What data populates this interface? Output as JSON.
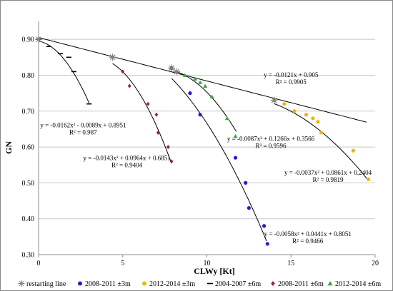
{
  "chart_data": {
    "type": "scatter",
    "xlabel": "CLWy [Kt]",
    "ylabel": "GN",
    "xlim": [
      0,
      20
    ],
    "ylim": [
      0.3,
      0.95
    ],
    "x_ticks": [
      0,
      5,
      10,
      15,
      20
    ],
    "y_ticks": [
      0.3,
      0.4,
      0.5,
      0.6,
      0.7,
      0.8,
      0.9
    ],
    "y_tick_labels": [
      "0.30",
      "0.40",
      "0.50",
      "0.60",
      "0.70",
      "0.80",
      "0.90"
    ],
    "grid": "horizontal",
    "legend_position": "bottom",
    "series": [
      {
        "name": "restarting line",
        "marker": "asterisk",
        "color": "#7f7f7f",
        "x": [
          0.0,
          4.4,
          7.9,
          8.2,
          14.0
        ],
        "y": [
          0.9,
          0.85,
          0.82,
          0.81,
          0.73
        ]
      },
      {
        "name": "2008-2011 ±3m",
        "marker": "circle",
        "color": "#1f1fd0",
        "x": [
          7.9,
          9.0,
          9.6,
          11.7,
          12.3,
          12.5,
          13.4,
          13.6
        ],
        "y": [
          0.82,
          0.75,
          0.69,
          0.57,
          0.5,
          0.43,
          0.38,
          0.33
        ]
      },
      {
        "name": "2012-2014 ±3m",
        "marker": "circle",
        "color": "#f5b400",
        "x": [
          14.0,
          14.6,
          15.2,
          15.9,
          16.3,
          16.6,
          16.8,
          18.7,
          19.6
        ],
        "y": [
          0.73,
          0.72,
          0.7,
          0.69,
          0.68,
          0.67,
          0.64,
          0.59,
          0.51
        ]
      },
      {
        "name": "2004-2007 ±6m",
        "marker": "dash",
        "color": "#000000",
        "x": [
          0.0,
          0.6,
          1.3,
          1.8,
          2.1,
          3.0
        ],
        "y": [
          0.9,
          0.88,
          0.86,
          0.85,
          0.81,
          0.72
        ]
      },
      {
        "name": "2008-2011 ±6m",
        "marker": "diamond",
        "color": "#a0203a",
        "x": [
          4.4,
          5.0,
          5.4,
          6.5,
          7.0,
          7.1,
          7.7,
          7.9
        ],
        "y": [
          0.85,
          0.81,
          0.77,
          0.72,
          0.69,
          0.64,
          0.6,
          0.56
        ]
      },
      {
        "name": "2012-2014 ±6m",
        "marker": "triangle",
        "color": "#3aa63a",
        "x": [
          8.2,
          8.7,
          9.3,
          9.6,
          9.9,
          10.3,
          11.2,
          11.7
        ],
        "y": [
          0.81,
          0.8,
          0.79,
          0.78,
          0.77,
          0.74,
          0.68,
          0.63
        ]
      }
    ],
    "trendlines": [
      {
        "kind": "linear",
        "coef": [
          -0.0121,
          0.905
        ],
        "x_range": [
          0,
          19.5
        ]
      },
      {
        "kind": "poly2",
        "coef": [
          -0.0162,
          -0.0089,
          0.8951
        ],
        "x_range": [
          0,
          3
        ]
      },
      {
        "kind": "poly2",
        "coef": [
          -0.0143,
          0.0964,
          0.6851
        ],
        "x_range": [
          4.4,
          7.9
        ]
      },
      {
        "kind": "poly2",
        "coef": [
          -0.0087,
          0.1266,
          0.3566
        ],
        "x_range": [
          8.2,
          11.75
        ]
      },
      {
        "kind": "poly2",
        "coef": [
          -0.0058,
          0.0441,
          0.8051
        ],
        "x_range": [
          7.9,
          13.55
        ]
      },
      {
        "kind": "poly2",
        "coef": [
          -0.0037,
          0.0861,
          0.2404
        ],
        "x_range": [
          14.0,
          19.5
        ]
      }
    ],
    "annotations": [
      {
        "text": [
          "y = -0.0121x + 0.905",
          "R² = 0.9905"
        ],
        "at": [
          15.0,
          0.795
        ]
      },
      {
        "text": [
          "y = -0.0162x² - 0.0089x + 0.8951",
          "R² = 0.987"
        ],
        "at": [
          2.65,
          0.655
        ]
      },
      {
        "text": [
          "y = -0.0143x² + 0.0964x + 0.6851",
          "R² = 0.9404"
        ],
        "at": [
          5.25,
          0.563
        ]
      },
      {
        "text": [
          "y = -0.0087x² + 0.1266x + 0.3566",
          "R² = 0.9596"
        ],
        "at": [
          13.8,
          0.617
        ]
      },
      {
        "text": [
          "y = -0.0037x² + 0.0861x + 0.2404",
          "R² = 0.9819"
        ],
        "at": [
          17.2,
          0.523
        ]
      },
      {
        "text": [
          "y = -0.0058x² + 0.0441x + 0.8051",
          "R² = 0.9466"
        ],
        "at": [
          16.0,
          0.352
        ]
      }
    ]
  }
}
